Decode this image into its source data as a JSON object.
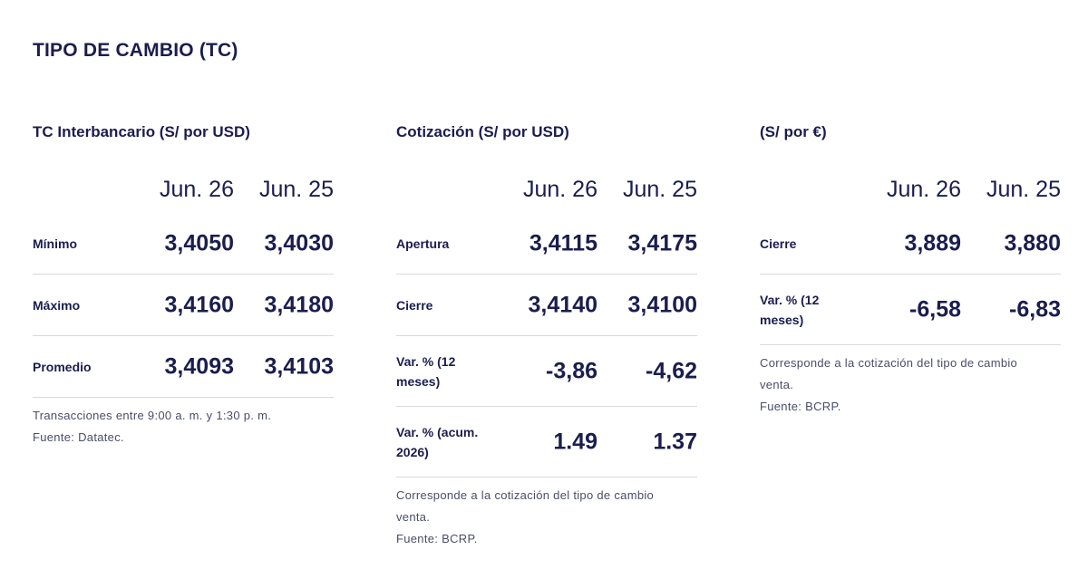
{
  "page_title": "TIPO DE CAMBIO (TC)",
  "panels": [
    {
      "title": "TC Interbancario (S/ por USD)",
      "columns": [
        "Jun. 26",
        "Jun. 25"
      ],
      "rows": [
        {
          "label": "Mínimo",
          "v1": "3,4050",
          "v2": "3,4030"
        },
        {
          "label": "Máximo",
          "v1": "3,4160",
          "v2": "3,4180"
        },
        {
          "label": "Promedio",
          "v1": "3,4093",
          "v2": "3,4103"
        }
      ],
      "notes": [
        "Transacciones entre 9:00 a. m. y 1:30 p. m.",
        "Fuente: Datatec."
      ]
    },
    {
      "title": "Cotización (S/ por USD)",
      "columns": [
        "Jun. 26",
        "Jun. 25"
      ],
      "rows": [
        {
          "label": "Apertura",
          "v1": "3,4115",
          "v2": "3,4175"
        },
        {
          "label": "Cierre",
          "v1": "3,4140",
          "v2": "3,4100"
        },
        {
          "label": "Var. % (12 meses)",
          "v1": "-3,86",
          "v2": "-4,62"
        },
        {
          "label": "Var. % (acum. 2026)",
          "v1": "1.49",
          "v2": "1.37"
        }
      ],
      "notes": [
        "Corresponde a la cotización del tipo de cambio venta.",
        "Fuente: BCRP."
      ]
    },
    {
      "title": "(S/ por €)",
      "columns": [
        "Jun. 26",
        "Jun. 25"
      ],
      "rows": [
        {
          "label": "Cierre",
          "v1": "3,889",
          "v2": "3,880"
        },
        {
          "label": "Var. % (12 meses)",
          "v1": "-6,58",
          "v2": "-6,83"
        }
      ],
      "notes": [
        "Corresponde a la cotización del tipo de cambio venta.",
        "Fuente: BCRP."
      ]
    }
  ]
}
